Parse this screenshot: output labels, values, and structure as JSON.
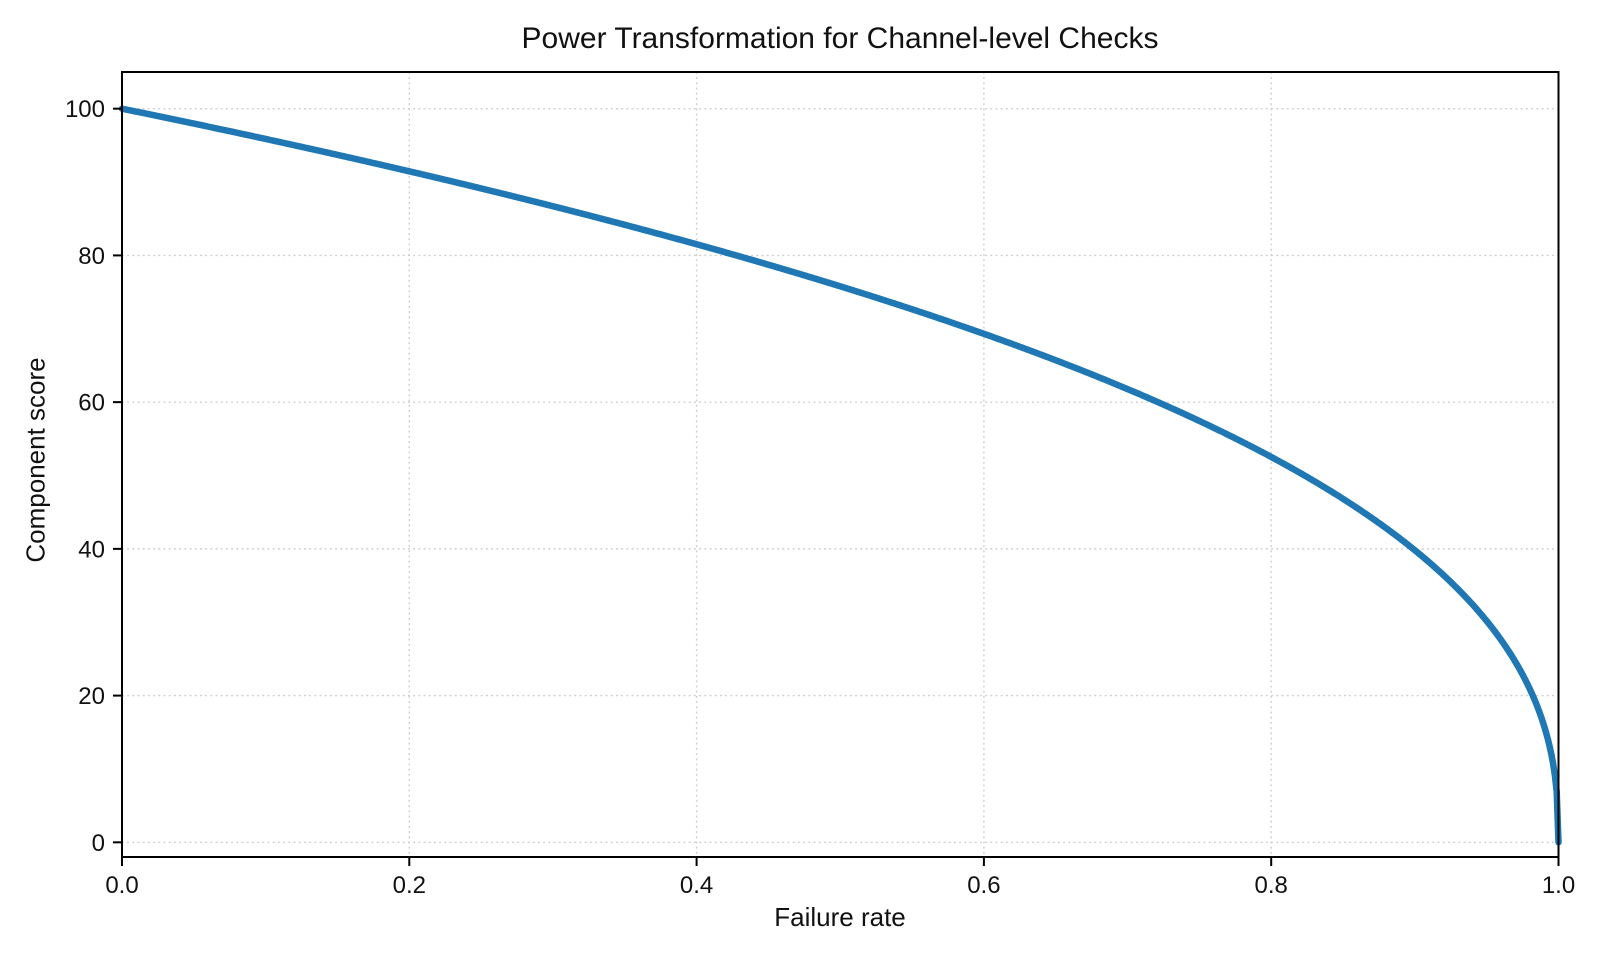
{
  "chart_data": {
    "type": "line",
    "title": "Power Transformation for Channel-level Checks",
    "xlabel": "Failure rate",
    "ylabel": "Component score",
    "xlim": [
      0.0,
      1.0
    ],
    "ylim": [
      -2,
      105
    ],
    "x_tick_labels": [
      "0.0",
      "0.2",
      "0.4",
      "0.6",
      "0.8",
      "1.0"
    ],
    "x_tick_values": [
      0.0,
      0.2,
      0.4,
      0.6,
      0.8,
      1.0
    ],
    "y_tick_labels": [
      "0",
      "20",
      "40",
      "60",
      "80",
      "100"
    ],
    "y_tick_values": [
      0,
      20,
      40,
      60,
      80,
      100
    ],
    "grid": "dotted",
    "legend": "none",
    "colors": {
      "line": "#1f77b4",
      "grid": "#cccccc",
      "axis": "#000000",
      "text": "#111111",
      "background": "#ffffff"
    },
    "series": [
      {
        "name": "component_score",
        "color": "#1f77b4",
        "line_width": 6.5,
        "formula": "y = 100 * (1 - x)^0.4",
        "scale": 100,
        "exponent": 0.4,
        "points": [
          [
            0.0,
            100.0
          ],
          [
            0.1,
            95.9
          ],
          [
            0.2,
            91.5
          ],
          [
            0.3,
            86.7
          ],
          [
            0.4,
            81.5
          ],
          [
            0.5,
            75.8
          ],
          [
            0.6,
            69.3
          ],
          [
            0.7,
            61.8
          ],
          [
            0.8,
            52.5
          ],
          [
            0.9,
            39.8
          ],
          [
            0.95,
            30.2
          ],
          [
            0.99,
            15.8
          ],
          [
            1.0,
            0.0
          ]
        ]
      }
    ]
  }
}
